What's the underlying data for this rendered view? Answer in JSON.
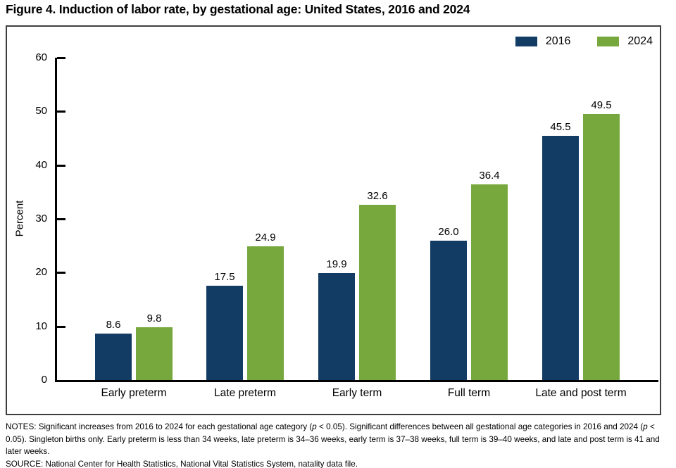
{
  "chart_data": {
    "type": "bar",
    "title": "Figure 4. Induction of labor rate, by gestational age: United States, 2016 and 2024",
    "categories": [
      "Early preterm",
      "Late preterm",
      "Early term",
      "Full term",
      "Late and post term"
    ],
    "series": [
      {
        "name": "2016",
        "color": "#123c63",
        "values": [
          8.6,
          17.5,
          19.9,
          26.0,
          45.5
        ]
      },
      {
        "name": "2024",
        "color": "#77a83e",
        "values": [
          9.8,
          24.9,
          32.6,
          36.4,
          49.5
        ]
      }
    ],
    "xlabel": "",
    "ylabel": "Percent",
    "ylim": [
      0,
      60
    ],
    "ytick_step": 10,
    "grid": false,
    "legend_position": "top-right",
    "value_label_decimals": 1
  },
  "legend": [
    {
      "label": "2016",
      "color": "#123c63"
    },
    {
      "label": "2024",
      "color": "#77a83e"
    }
  ],
  "notes": {
    "segments": [
      {
        "text": "NOTES: Significant increases from 2016 to 2024 for each gestational age category ("
      },
      {
        "text": "p",
        "italic": true
      },
      {
        "text": " < 0.05). Significant differences between all gestational age categories in 2016 and 2024 ("
      },
      {
        "text": "p",
        "italic": true
      },
      {
        "text": " < 0.05). Singleton births only. Early preterm is less than 34 weeks, late preterm is 34–36 weeks, early term is 37–38 weeks, full term is 39–40 weeks, and late and post term is 41 and later weeks."
      }
    ],
    "source": "SOURCE: National Center for Health Statistics, National Vital Statistics System, natality data file."
  }
}
